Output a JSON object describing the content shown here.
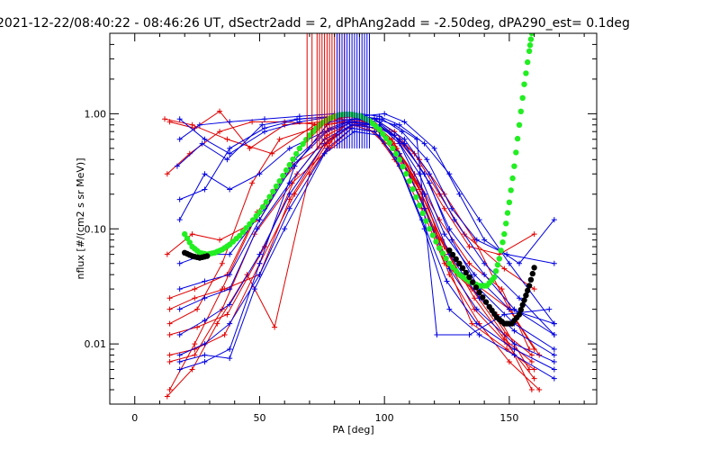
{
  "chart_data": {
    "type": "scatter",
    "title": "2021-12-22/08:40:22 - 08:46:26 UT, dSectr2add = 2, dPhAng2add = -2.50deg, dPA290_est=   0.1deg",
    "xlabel": "PA [deg]",
    "ylabel": "nflux [#/(cm2 s sr MeV)]",
    "xlim": [
      -10,
      185
    ],
    "ylim": [
      0.003,
      5
    ],
    "yscale": "log",
    "grid": false,
    "x_ticks": [
      0,
      50,
      100,
      150
    ],
    "x_tick_labels": [
      "0",
      "50",
      "100",
      "150"
    ],
    "y_ticks": [
      0.01,
      0.1,
      1.0
    ],
    "y_tick_labels": [
      "0.01",
      "0.10",
      "1.00"
    ],
    "colors": {
      "red_series": "#e00000",
      "blue_series": "#0000e0",
      "green_fit": "#22ee22",
      "black_fit": "#000000"
    },
    "series": [
      {
        "color": "red",
        "marker": "plus",
        "lines": [
          {
            "x": [
              12,
              23,
              37,
              55,
              72,
              80,
              88,
              96,
              104,
              114,
              124,
              136,
              150,
              160
            ],
            "y": [
              0.9,
              0.8,
              0.6,
              0.45,
              0.8,
              0.9,
              0.95,
              0.9,
              0.7,
              0.4,
              0.2,
              0.08,
              0.02,
              0.009
            ]
          },
          {
            "x": [
              13,
              23,
              34,
              50,
              66,
              78,
              86,
              94,
              102,
              112,
              122,
              134,
              147,
              158
            ],
            "y": [
              0.06,
              0.09,
              0.08,
              0.12,
              0.5,
              0.9,
              0.95,
              0.85,
              0.6,
              0.3,
              0.12,
              0.05,
              0.03,
              0.009
            ]
          },
          {
            "x": [
              14,
              24,
              37,
              49,
              64,
              77,
              87,
              95,
              103,
              113,
              123,
              137,
              149,
              159
            ],
            "y": [
              0.025,
              0.03,
              0.04,
              0.14,
              0.35,
              0.8,
              0.9,
              0.85,
              0.6,
              0.25,
              0.08,
              0.03,
              0.012,
              0.008
            ]
          },
          {
            "x": [
              14,
              25,
              37,
              52,
              65,
              77,
              87,
              96,
              104,
              114,
              124,
              136,
              148,
              159
            ],
            "y": [
              0.012,
              0.014,
              0.018,
              0.07,
              0.3,
              0.65,
              0.85,
              0.8,
              0.55,
              0.22,
              0.07,
              0.025,
              0.011,
              0.007
            ]
          },
          {
            "x": [
              14,
              24,
              36,
              50,
              64,
              78,
              88,
              96,
              105,
              116,
              125,
              135,
              149,
              160
            ],
            "y": [
              0.008,
              0.009,
              0.012,
              0.05,
              0.2,
              0.6,
              0.8,
              0.75,
              0.5,
              0.2,
              0.05,
              0.015,
              0.009,
              0.006
            ]
          },
          {
            "x": [
              14,
              24,
              35,
              48,
              63,
              78,
              87,
              96,
              105,
              115,
              124,
              136,
              149,
              160
            ],
            "y": [
              0.007,
              0.008,
              0.02,
              0.09,
              0.25,
              0.5,
              0.75,
              0.7,
              0.45,
              0.18,
              0.06,
              0.02,
              0.01,
              0.005
            ]
          },
          {
            "x": [
              14,
              24,
              35,
              48,
              62,
              77,
              87,
              96,
              104,
              115,
              124,
              135,
              148,
              159
            ],
            "y": [
              0.004,
              0.01,
              0.03,
              0.12,
              0.35,
              0.55,
              0.8,
              0.7,
              0.4,
              0.15,
              0.05,
              0.03,
              0.012,
              0.004
            ]
          },
          {
            "x": [
              13,
              23,
              33,
              45,
              56,
              70,
              84,
              92,
              100,
              110,
              120,
              130,
              145,
              158
            ],
            "y": [
              0.0035,
              0.006,
              0.015,
              0.04,
              0.014,
              0.3,
              0.85,
              0.8,
              0.55,
              0.3,
              0.1,
              0.04,
              0.018,
              0.006
            ]
          },
          {
            "x": [
              14,
              24,
              34,
              46,
              60,
              75,
              85,
              94,
              104,
              114,
              124,
              134,
              146,
              160
            ],
            "y": [
              0.85,
              0.75,
              1.05,
              0.5,
              0.8,
              0.85,
              0.95,
              0.9,
              0.65,
              0.35,
              0.15,
              0.07,
              0.06,
              0.09
            ]
          },
          {
            "x": [
              14,
              25,
              35,
              47,
              58,
              72,
              82,
              92,
              102,
              112,
              122,
              132,
              148,
              160
            ],
            "y": [
              0.015,
              0.02,
              0.05,
              0.25,
              0.6,
              0.75,
              0.9,
              0.85,
              0.7,
              0.45,
              0.2,
              0.09,
              0.045,
              0.03
            ]
          },
          {
            "x": [
              14,
              24,
              36,
              50,
              62,
              76,
              86,
              96,
              104,
              115,
              124,
              135,
              150,
              162
            ],
            "y": [
              0.02,
              0.025,
              0.03,
              0.04,
              0.18,
              0.55,
              0.85,
              0.8,
              0.5,
              0.2,
              0.07,
              0.035,
              0.02,
              0.008
            ]
          },
          {
            "x": [
              13,
              22,
              34,
              47,
              60,
              76,
              86,
              96,
              106,
              116,
              126,
              138,
              150,
              162
            ],
            "y": [
              0.3,
              0.45,
              0.7,
              0.85,
              0.85,
              0.8,
              0.85,
              0.75,
              0.45,
              0.15,
              0.04,
              0.015,
              0.007,
              0.004
            ]
          }
        ]
      },
      {
        "color": "blue",
        "marker": "plus",
        "lines": [
          {
            "x": [
              18,
              28,
              38,
              52,
              66,
              80,
              90,
              98,
              106,
              116,
              126,
              138,
              150,
              168
            ],
            "y": [
              0.9,
              0.6,
              0.45,
              0.7,
              0.85,
              0.95,
              1.0,
              0.95,
              0.8,
              0.55,
              0.3,
              0.12,
              0.05,
              0.015
            ]
          },
          {
            "x": [
              17,
              27,
              37,
              51,
              65,
              80,
              90,
              99,
              107,
              117,
              127,
              137,
              149,
              168
            ],
            "y": [
              0.35,
              0.55,
              0.4,
              0.8,
              0.9,
              0.95,
              0.95,
              0.9,
              0.7,
              0.4,
              0.15,
              0.08,
              0.06,
              0.05
            ]
          },
          {
            "x": [
              18,
              28,
              38,
              50,
              62,
              76,
              86,
              96,
              106,
              116,
              126,
              140,
              152,
              168
            ],
            "y": [
              0.12,
              0.3,
              0.22,
              0.3,
              0.5,
              0.7,
              0.85,
              0.8,
              0.6,
              0.3,
              0.1,
              0.04,
              0.02,
              0.012
            ]
          },
          {
            "x": [
              18,
              28,
              38,
              52,
              64,
              78,
              88,
              98,
              108,
              118,
              128,
              140,
              154,
              168
            ],
            "y": [
              0.05,
              0.06,
              0.06,
              0.15,
              0.4,
              0.75,
              0.9,
              0.85,
              0.6,
              0.3,
              0.12,
              0.05,
              0.025,
              0.012
            ]
          },
          {
            "x": [
              18,
              28,
              38,
              50,
              63,
              77,
              88,
              98,
              108,
              118,
              127,
              138,
              152,
              168
            ],
            "y": [
              0.03,
              0.035,
              0.04,
              0.12,
              0.35,
              0.7,
              0.85,
              0.8,
              0.55,
              0.25,
              0.08,
              0.03,
              0.015,
              0.009
            ]
          },
          {
            "x": [
              18,
              28,
              38,
              49,
              62,
              76,
              87,
              98,
              106,
              116,
              126,
              138,
              152,
              168
            ],
            "y": [
              0.02,
              0.025,
              0.03,
              0.1,
              0.25,
              0.6,
              0.8,
              0.8,
              0.55,
              0.2,
              0.06,
              0.025,
              0.013,
              0.008
            ]
          },
          {
            "x": [
              18,
              28,
              38,
              50,
              62,
              76,
              87,
              97,
              106,
              116,
              126,
              137,
              152,
              168
            ],
            "y": [
              0.012,
              0.016,
              0.022,
              0.06,
              0.2,
              0.55,
              0.8,
              0.75,
              0.45,
              0.15,
              0.045,
              0.02,
              0.01,
              0.007
            ]
          },
          {
            "x": [
              18,
              28,
              38,
              50,
              62,
              77,
              87,
              96,
              105,
              115,
              125,
              137,
              152,
              168
            ],
            "y": [
              0.008,
              0.01,
              0.015,
              0.04,
              0.15,
              0.5,
              0.75,
              0.7,
              0.4,
              0.12,
              0.035,
              0.015,
              0.009,
              0.006
            ]
          },
          {
            "x": [
              18,
              28,
              38,
              48,
              60,
              76,
              88,
              98,
              106,
              116,
              126,
              138,
              152,
              168
            ],
            "y": [
              0.007,
              0.008,
              0.0075,
              0.03,
              0.1,
              0.45,
              0.7,
              0.65,
              0.35,
              0.1,
              0.02,
              0.012,
              0.008,
              0.005
            ]
          },
          {
            "x": [
              18,
              28,
              38,
              50,
              64,
              78,
              88,
              97,
              104,
              113,
              121,
              134,
              148,
              166
            ],
            "y": [
              0.006,
              0.007,
              0.009,
              0.05,
              0.35,
              0.85,
              0.9,
              0.9,
              0.8,
              0.6,
              0.012,
              0.012,
              0.018,
              0.02
            ]
          },
          {
            "x": [
              18,
              26,
              38,
              52,
              66,
              80,
              90,
              100,
              108,
              120,
              130,
              140,
              154,
              168
            ],
            "y": [
              0.6,
              0.8,
              0.85,
              0.9,
              0.95,
              1.0,
              0.95,
              1.0,
              0.85,
              0.5,
              0.2,
              0.08,
              0.05,
              0.12
            ]
          },
          {
            "x": [
              18,
              28,
              38,
              52,
              66,
              80,
              88,
              96,
              104,
              114,
              124,
              136,
              150,
              168
            ],
            "y": [
              0.18,
              0.22,
              0.5,
              0.75,
              0.9,
              0.95,
              1.0,
              0.9,
              0.65,
              0.3,
              0.09,
              0.04,
              0.02,
              0.015
            ]
          }
        ]
      },
      {
        "name": "",
        "color": "green",
        "marker": "dot",
        "x": [
          20,
          23,
          26,
          29,
          32,
          35,
          38,
          42,
          46,
          50,
          54,
          58,
          62,
          66,
          70,
          74,
          78,
          82,
          86,
          90,
          94,
          98,
          102,
          106,
          110,
          114,
          118,
          122,
          126,
          130,
          134,
          138,
          141,
          144,
          146,
          148,
          150,
          152,
          154,
          156,
          158,
          159
        ],
        "y": [
          0.09,
          0.07,
          0.062,
          0.06,
          0.062,
          0.066,
          0.073,
          0.087,
          0.11,
          0.14,
          0.19,
          0.26,
          0.36,
          0.5,
          0.65,
          0.8,
          0.91,
          0.98,
          0.99,
          0.96,
          0.87,
          0.73,
          0.56,
          0.4,
          0.26,
          0.16,
          0.1,
          0.068,
          0.05,
          0.04,
          0.035,
          0.032,
          0.032,
          0.038,
          0.055,
          0.09,
          0.17,
          0.35,
          0.8,
          1.8,
          3.5,
          5.0
        ]
      },
      {
        "name": "",
        "color": "black",
        "marker": "dot",
        "x": [
          20,
          23,
          26,
          29,
          126,
          130,
          134,
          138,
          142,
          145,
          148,
          151,
          154,
          156,
          158,
          160
        ],
        "y": [
          0.062,
          0.058,
          0.056,
          0.058,
          0.065,
          0.05,
          0.038,
          0.028,
          0.021,
          0.017,
          0.015,
          0.015,
          0.018,
          0.024,
          0.032,
          0.046
        ]
      },
      {
        "name": "",
        "color": "red",
        "marker": "vline",
        "x": [
          69,
          71,
          73,
          74,
          75,
          76,
          77,
          78,
          79,
          80,
          81,
          82,
          83,
          84
        ]
      },
      {
        "name": "",
        "color": "blue",
        "marker": "vline",
        "x": [
          81,
          82,
          83,
          84,
          85,
          86,
          87,
          88,
          89,
          90,
          91,
          92,
          93,
          94
        ]
      }
    ]
  }
}
